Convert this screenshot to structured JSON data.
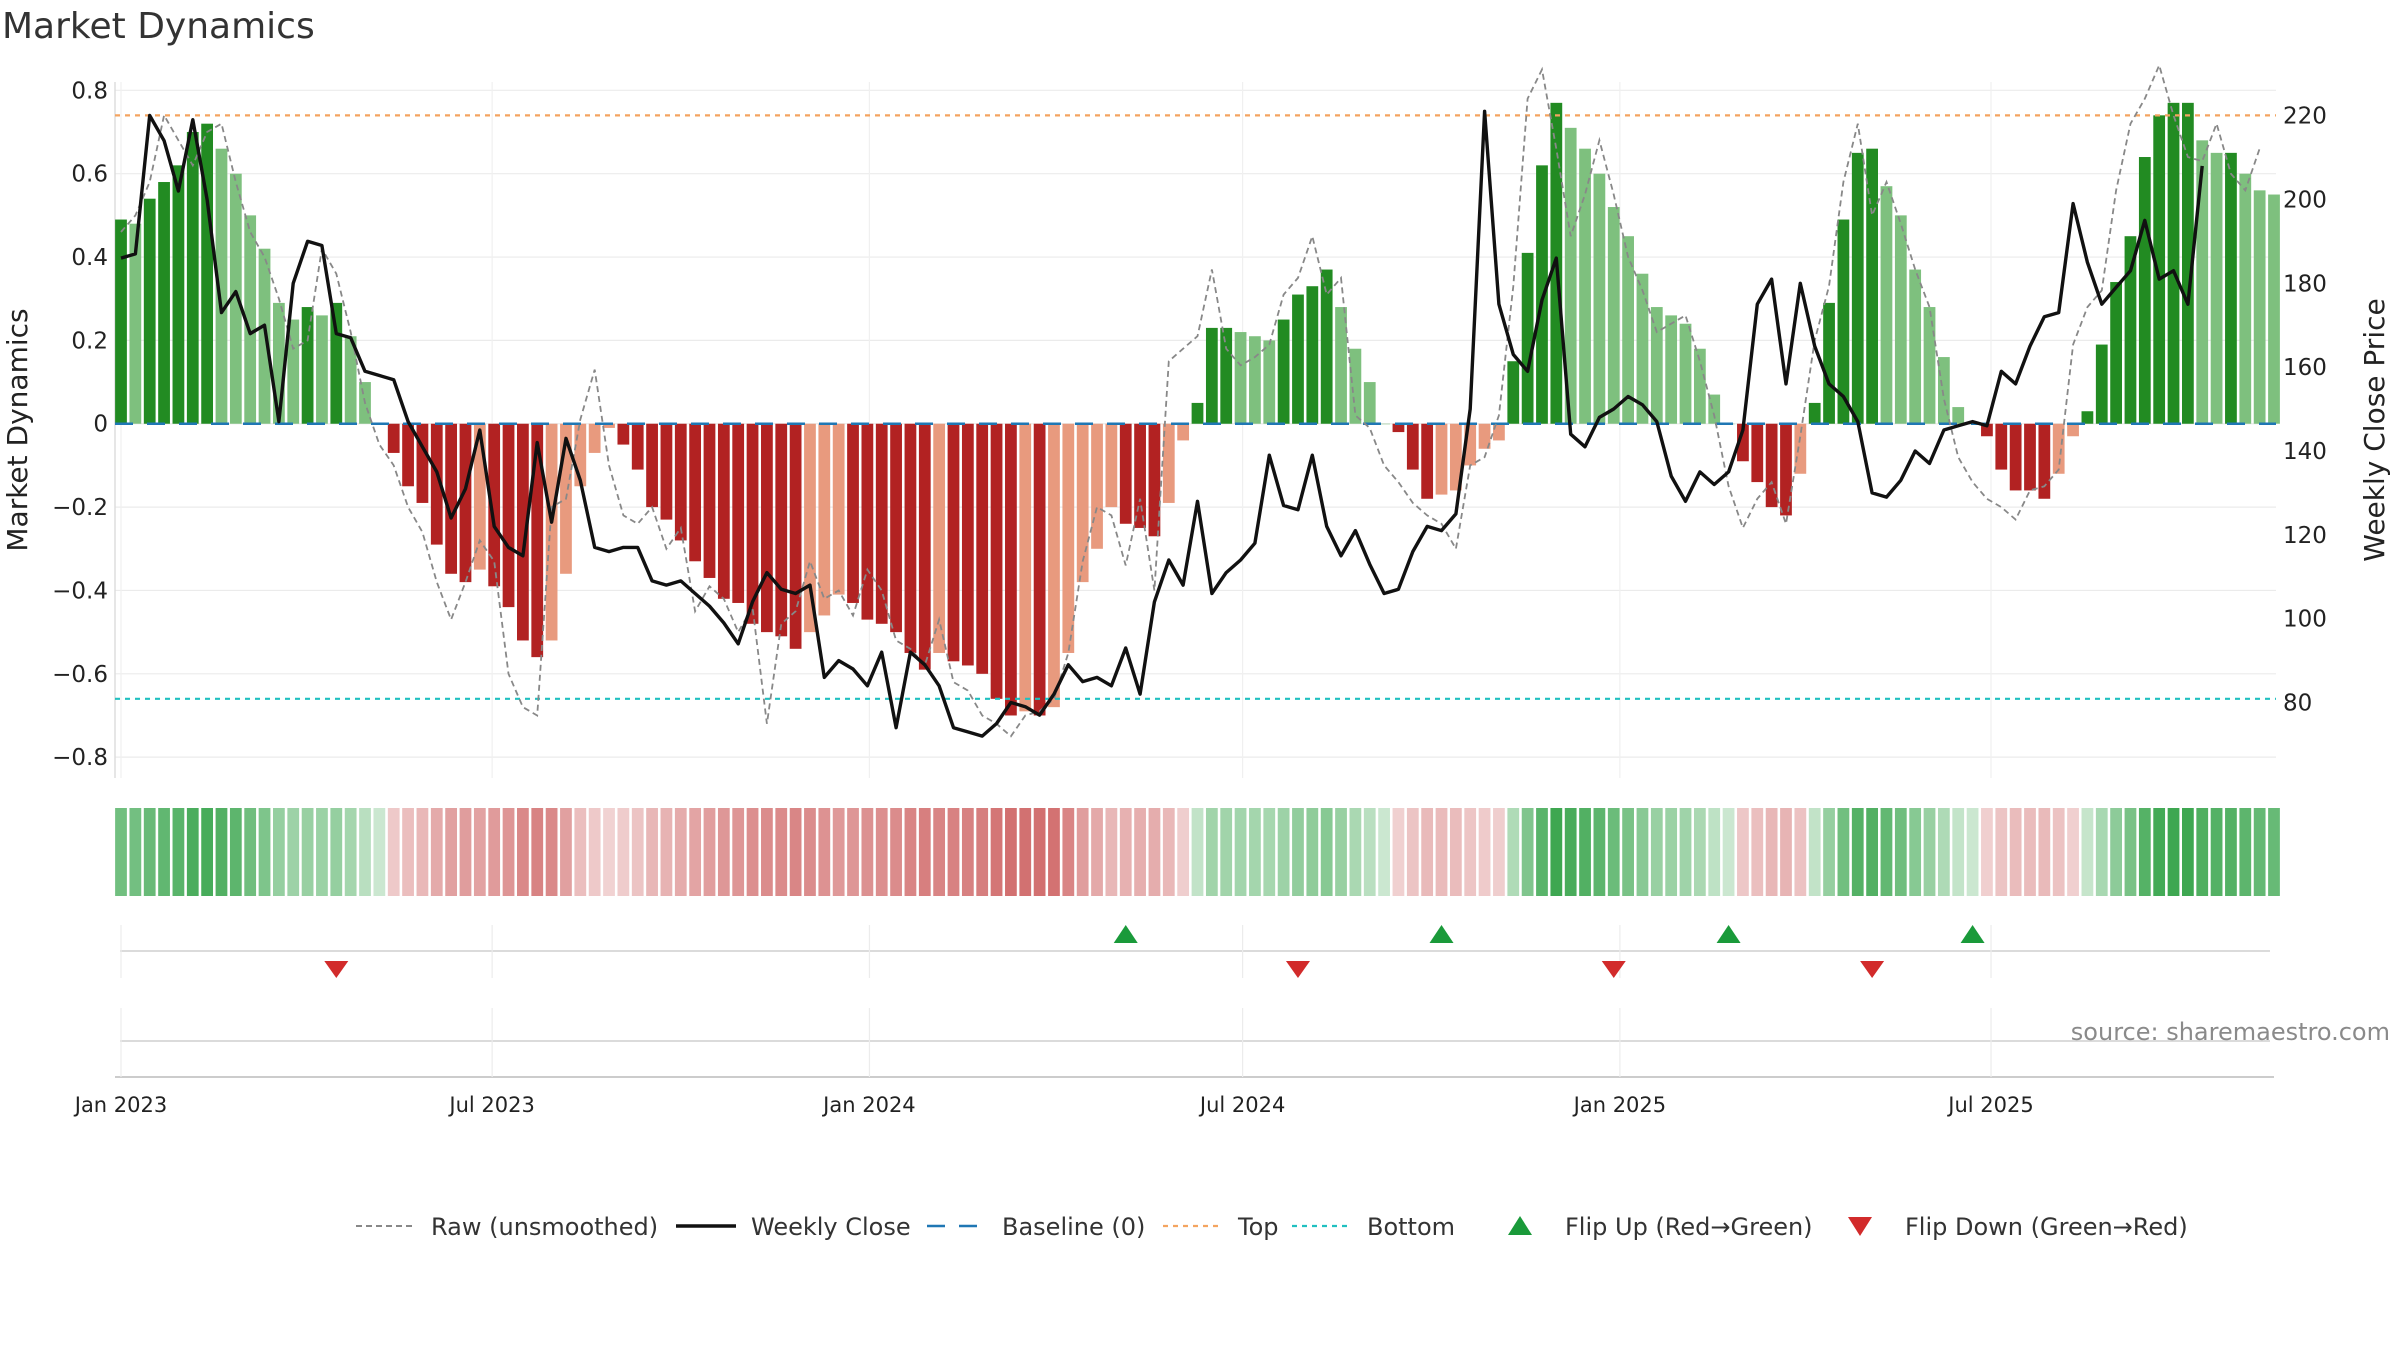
{
  "title": "Market Dynamics",
  "source": "source: sharemaestro.com",
  "colors": {
    "strong_up": "#228b22",
    "weak_up": "#7ec07e",
    "strong_down": "#b22222",
    "weak_down": "#e89a7e",
    "raw": "#888888",
    "close": "#111111",
    "baseline": "#1f77b4",
    "top": "#f4a460",
    "bottom": "#20c0c0",
    "flip_up": "#1a9a3a",
    "flip_down": "#d22b2b"
  },
  "chart_data": {
    "type": "bar",
    "title": "Market Dynamics",
    "ylabel": "Market Dynamics",
    "y2label": "Weekly Close Price",
    "ylim": [
      -0.85,
      0.82
    ],
    "y2lim": [
      62,
      228
    ],
    "yticks": [
      "0.8",
      "0.6",
      "0.4",
      "0.2",
      "0",
      "−0.2",
      "−0.4",
      "−0.6",
      "−0.8"
    ],
    "y2ticks": [
      "220",
      "200",
      "180",
      "160",
      "140",
      "120",
      "100",
      "80"
    ],
    "xtick_labels": [
      "Jan 2023",
      "Jul 2023",
      "Jan 2024",
      "Jul 2024",
      "Jan 2025",
      "Jul 2025"
    ],
    "x_start": "2023-01-01",
    "week_step_days": 7,
    "top_line": 0.74,
    "bottom_line": -0.66,
    "baseline": 0,
    "legend": [
      {
        "label": "Raw (unsmoothed)",
        "style": "raw"
      },
      {
        "label": "Weekly Close",
        "style": "close"
      },
      {
        "label": "Baseline (0)",
        "style": "baseline"
      },
      {
        "label": "Top",
        "style": "top"
      },
      {
        "label": "Bottom",
        "style": "bottom"
      },
      {
        "label": "Flip Up (Red→Green)",
        "style": "flip_up"
      },
      {
        "label": "Flip Down (Green→Red)",
        "style": "flip_down"
      }
    ],
    "flip_up_dates": [
      "2024-05-05",
      "2024-10-06",
      "2025-02-23",
      "2025-06-22"
    ],
    "flip_down_dates": [
      "2023-04-16",
      "2024-07-28",
      "2024-12-29",
      "2025-05-04"
    ],
    "series": [
      {
        "name": "Market Dynamics",
        "values": [
          0.49,
          0.48,
          0.54,
          0.58,
          0.62,
          0.7,
          0.72,
          0.66,
          0.6,
          0.5,
          0.42,
          0.29,
          0.25,
          0.28,
          0.26,
          0.29,
          0.21,
          0.1,
          0,
          -0.07,
          -0.15,
          -0.19,
          -0.29,
          -0.36,
          -0.38,
          -0.35,
          -0.39,
          -0.44,
          -0.52,
          -0.56,
          -0.52,
          -0.36,
          -0.15,
          -0.07,
          -0.01,
          -0.05,
          -0.11,
          -0.2,
          -0.23,
          -0.28,
          -0.33,
          -0.37,
          -0.42,
          -0.43,
          -0.48,
          -0.5,
          -0.51,
          -0.54,
          -0.5,
          -0.46,
          -0.41,
          -0.43,
          -0.47,
          -0.48,
          -0.5,
          -0.55,
          -0.59,
          -0.55,
          -0.57,
          -0.58,
          -0.6,
          -0.66,
          -0.7,
          -0.69,
          -0.7,
          -0.68,
          -0.55,
          -0.38,
          -0.3,
          -0.2,
          -0.24,
          -0.25,
          -0.27,
          -0.19,
          -0.04,
          0.05,
          0.23,
          0.23,
          0.22,
          0.21,
          0.2,
          0.25,
          0.31,
          0.33,
          0.37,
          0.28,
          0.18,
          0.1,
          0,
          -0.02,
          -0.11,
          -0.18,
          -0.17,
          -0.16,
          -0.1,
          -0.06,
          -0.04,
          0.15,
          0.41,
          0.62,
          0.77,
          0.71,
          0.66,
          0.6,
          0.52,
          0.45,
          0.36,
          0.28,
          0.26,
          0.24,
          0.18,
          0.07,
          0,
          -0.09,
          -0.14,
          -0.2,
          -0.22,
          -0.12,
          0.05,
          0.29,
          0.49,
          0.65,
          0.66,
          0.57,
          0.5,
          0.37,
          0.28,
          0.16,
          0.04,
          0,
          -0.03,
          -0.11,
          -0.16,
          -0.16,
          -0.18,
          -0.12,
          -0.03,
          0.03,
          0.19,
          0.34,
          0.45,
          0.64,
          0.74,
          0.77,
          0.77,
          0.68,
          0.65,
          0.65,
          0.6,
          0.56,
          0.55
        ]
      },
      {
        "name": "Raw (unsmoothed)",
        "values": [
          0.46,
          0.5,
          0.58,
          0.74,
          0.68,
          0.62,
          0.7,
          0.72,
          0.58,
          0.46,
          0.4,
          0.3,
          0.18,
          0.2,
          0.42,
          0.36,
          0.22,
          0.05,
          -0.05,
          -0.1,
          -0.2,
          -0.26,
          -0.38,
          -0.47,
          -0.38,
          -0.28,
          -0.33,
          -0.6,
          -0.68,
          -0.7,
          -0.2,
          -0.18,
          0.01,
          0.13,
          -0.1,
          -0.22,
          -0.24,
          -0.2,
          -0.3,
          -0.25,
          -0.45,
          -0.39,
          -0.42,
          -0.5,
          -0.44,
          -0.72,
          -0.48,
          -0.45,
          -0.33,
          -0.42,
          -0.4,
          -0.46,
          -0.35,
          -0.4,
          -0.52,
          -0.54,
          -0.58,
          -0.47,
          -0.62,
          -0.64,
          -0.7,
          -0.72,
          -0.75,
          -0.7,
          -0.69,
          -0.66,
          -0.55,
          -0.33,
          -0.2,
          -0.22,
          -0.34,
          -0.18,
          -0.4,
          0.15,
          0.18,
          0.21,
          0.37,
          0.18,
          0.14,
          0.16,
          0.19,
          0.31,
          0.35,
          0.45,
          0.31,
          0.35,
          0.02,
          -0.01,
          -0.1,
          -0.14,
          -0.19,
          -0.22,
          -0.24,
          -0.3,
          -0.1,
          -0.08,
          0.02,
          0.33,
          0.78,
          0.85,
          0.66,
          0.45,
          0.55,
          0.68,
          0.55,
          0.4,
          0.32,
          0.22,
          0.24,
          0.26,
          0.15,
          0.02,
          -0.15,
          -0.25,
          -0.18,
          -0.14,
          -0.24,
          -0.03,
          0.2,
          0.33,
          0.58,
          0.72,
          0.5,
          0.58,
          0.48,
          0.37,
          0.28,
          0.06,
          -0.08,
          -0.14,
          -0.18,
          -0.2,
          -0.23,
          -0.16,
          -0.15,
          -0.11,
          0.19,
          0.28,
          0.32,
          0.56,
          0.72,
          0.78,
          0.86,
          0.74,
          0.64,
          0.63,
          0.72,
          0.6,
          0.56,
          0.66
        ]
      },
      {
        "name": "Weekly Close",
        "values": [
          186,
          187,
          220,
          214,
          202,
          219,
          200,
          173,
          178,
          168,
          170,
          147,
          180,
          190,
          189,
          168,
          167,
          159,
          158,
          157,
          147,
          141,
          135,
          124,
          131,
          145,
          122,
          117,
          115,
          142,
          123,
          143,
          133,
          117,
          116,
          117,
          117,
          109,
          108,
          109,
          106,
          103,
          99,
          94,
          104,
          111,
          107,
          106,
          108,
          86,
          90,
          88,
          84,
          92,
          74,
          92,
          89,
          84,
          74,
          73,
          72,
          75,
          80,
          79,
          77,
          82,
          89,
          85,
          86,
          84,
          93,
          82,
          104,
          114,
          108,
          128,
          106,
          111,
          114,
          118,
          139,
          127,
          126,
          139,
          122,
          115,
          121,
          113,
          106,
          107,
          116,
          122,
          121,
          125,
          150,
          221,
          175,
          163,
          159,
          176,
          186,
          144,
          141,
          148,
          150,
          153,
          151,
          147,
          134,
          128,
          135,
          132,
          135,
          145,
          175,
          181,
          156,
          180,
          165,
          156,
          153,
          147,
          130,
          129,
          133,
          140,
          137,
          145,
          146,
          147,
          146,
          159,
          156,
          165,
          172,
          173,
          199,
          185,
          175,
          179,
          183,
          195,
          181,
          183,
          175,
          208
        ]
      }
    ]
  }
}
